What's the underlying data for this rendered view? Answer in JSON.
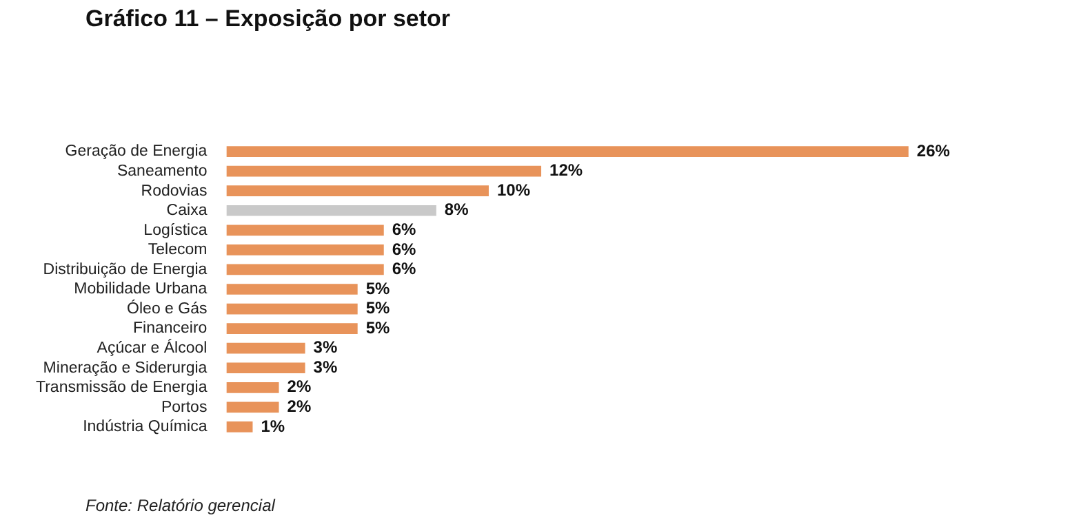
{
  "chart_data": {
    "type": "bar",
    "orientation": "horizontal",
    "title": "Gráfico 11 – Exposição por setor",
    "annotations": [
      "Fonte: Relatório gerencial"
    ],
    "categories": [
      "Geração de Energia",
      "Saneamento",
      "Rodovias",
      "Caixa",
      "Logística",
      "Telecom",
      "Distribuição de Energia",
      "Mobilidade Urbana",
      "Óleo e Gás",
      "Financeiro",
      "Açúcar e Álcool",
      "Mineração e Siderurgia",
      "Transmissão de Energia",
      "Portos",
      "Indústria Química"
    ],
    "values": [
      26,
      12,
      10,
      8,
      6,
      6,
      6,
      5,
      5,
      5,
      3,
      3,
      2,
      2,
      1
    ],
    "value_labels": [
      "26%",
      "12%",
      "10%",
      "8%",
      "6%",
      "6%",
      "6%",
      "5%",
      "5%",
      "5%",
      "3%",
      "3%",
      "2%",
      "2%",
      "1%"
    ],
    "colors": [
      "#e8935a",
      "#e8935a",
      "#e8935a",
      "#c9c9c9",
      "#e8935a",
      "#e8935a",
      "#e8935a",
      "#e8935a",
      "#e8935a",
      "#e8935a",
      "#e8935a",
      "#e8935a",
      "#e8935a",
      "#e8935a",
      "#e8935a"
    ],
    "legend": false
  }
}
